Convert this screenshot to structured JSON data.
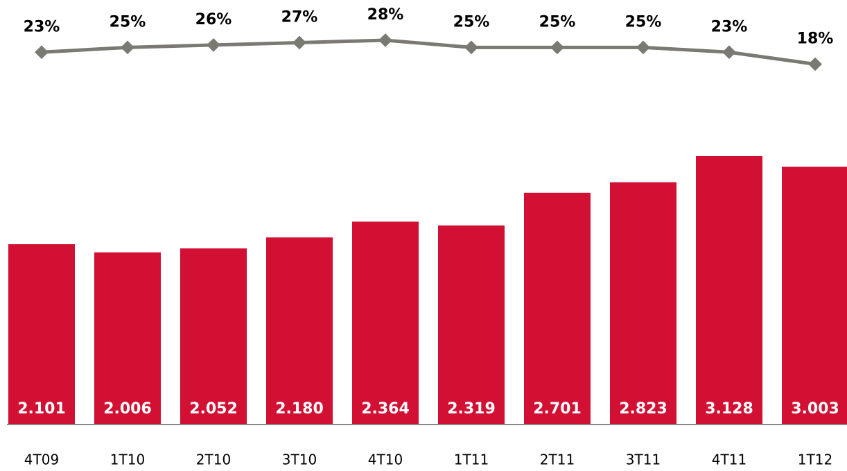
{
  "chart_data": {
    "type": "bar",
    "categories": [
      "4T09",
      "1T10",
      "2T10",
      "3T10",
      "4T10",
      "1T11",
      "2T11",
      "3T11",
      "4T11",
      "1T12"
    ],
    "series": [
      {
        "type": "bar",
        "color": "#d11034",
        "values": [
          2101,
          2006,
          2052,
          2180,
          2364,
          2319,
          2701,
          2823,
          3128,
          3003
        ],
        "value_labels": [
          "2.101",
          "2.006",
          "2.052",
          "2.180",
          "2.364",
          "2.319",
          "2.701",
          "2.823",
          "3.128",
          "3.003"
        ]
      },
      {
        "type": "line",
        "color": "#7a7a72",
        "values": [
          23,
          25,
          26,
          27,
          28,
          25,
          25,
          25,
          23,
          18
        ],
        "value_labels": [
          "23%",
          "25%",
          "26%",
          "27%",
          "28%",
          "25%",
          "25%",
          "25%",
          "23%",
          "18%"
        ]
      }
    ]
  }
}
